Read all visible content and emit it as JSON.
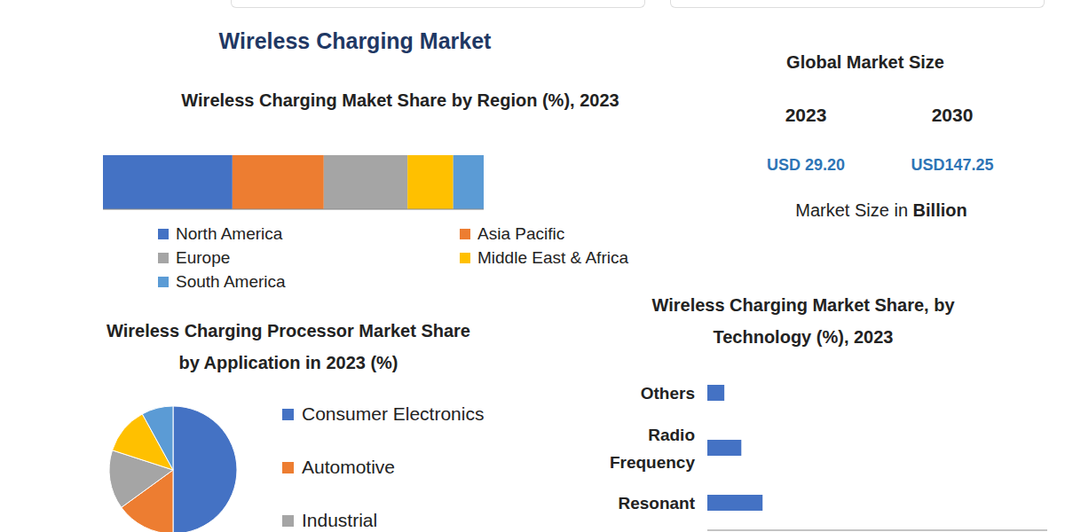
{
  "title": "Wireless Charging Market",
  "market_size": {
    "title": "Global Market Size",
    "years": [
      "2023",
      "2030"
    ],
    "values": [
      "USD 29.20",
      "USD147.25"
    ],
    "unit_label": "Market Size in Billion"
  },
  "chart_data": [
    {
      "type": "bar",
      "orientation": "horizontal",
      "stacked": true,
      "title": "Wireless Charging Maket Share by Region (%), 2023",
      "categories": [
        null
      ],
      "series": [
        {
          "name": "North America",
          "color": "#4472c4",
          "values": [
            34
          ]
        },
        {
          "name": "Asia Pacific",
          "color": "#ed7d31",
          "values": [
            24
          ]
        },
        {
          "name": "Europe",
          "color": "#a5a5a5",
          "values": [
            22
          ]
        },
        {
          "name": "Middle East & Africa",
          "color": "#ffc000",
          "values": [
            12
          ]
        },
        {
          "name": "South America",
          "color": "#5b9bd5",
          "values": [
            8
          ]
        }
      ],
      "xlim": [
        0,
        100
      ],
      "tick_labels": false,
      "legend": "bottom"
    },
    {
      "type": "pie",
      "title": "Wireless Charging Processor Market Share by Application in 2023 (%)",
      "categories": [
        "Consumer Electronics",
        "Automotive",
        "Industrial",
        null,
        null
      ],
      "values": [
        50,
        15,
        15,
        12,
        8
      ],
      "colors": [
        "#4472c4",
        "#ed7d31",
        "#a5a5a5",
        "#ffc000",
        "#5b9bd5"
      ],
      "legend": "right"
    },
    {
      "type": "bar",
      "orientation": "horizontal",
      "title": "Wireless Charging Market Share, by Technology (%), 2023",
      "categories": [
        "Others",
        "Radio Frequency",
        "Resonant"
      ],
      "values": [
        4,
        8,
        13
      ],
      "color": "#4472c4",
      "xlim": [
        0,
        80
      ],
      "tick_labels": "y"
    }
  ]
}
